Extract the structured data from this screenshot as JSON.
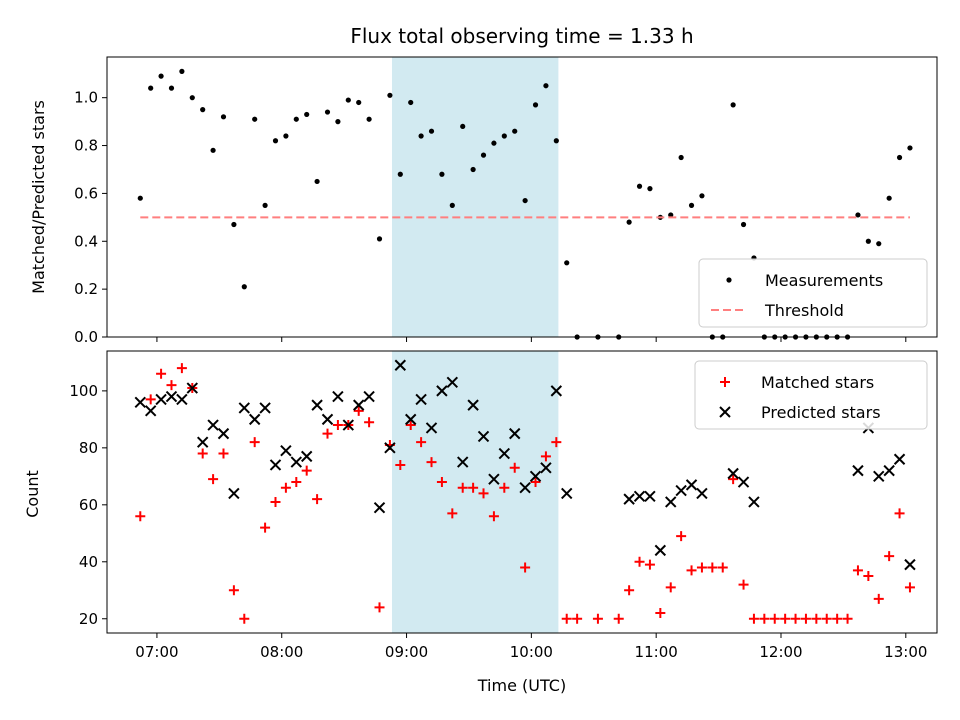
{
  "chart_data": [
    {
      "type": "scatter",
      "title": "Flux total observing time = 1.33 h",
      "xlabel": "",
      "ylabel": "Matched/Predicted stars",
      "xlim": [
        "06:36",
        "13:15"
      ],
      "ylim": [
        0,
        1.17
      ],
      "yticks": [
        0.0,
        0.2,
        0.4,
        0.6,
        0.8,
        1.0
      ],
      "ytick_labels": [
        "0.0",
        "0.2",
        "0.4",
        "0.6",
        "0.8",
        "1.0"
      ],
      "highlight_span": [
        "08:53",
        "10:13"
      ],
      "highlight_color": "#add8e6",
      "legend_position": "lower-right",
      "series": [
        {
          "name": "Measurements",
          "marker": "dot",
          "color": "#000000",
          "points": [
            [
              "06:52",
              0.58
            ],
            [
              "06:57",
              1.04
            ],
            [
              "07:02",
              1.09
            ],
            [
              "07:07",
              1.04
            ],
            [
              "07:12",
              1.11
            ],
            [
              "07:17",
              1.0
            ],
            [
              "07:22",
              0.95
            ],
            [
              "07:27",
              0.78
            ],
            [
              "07:32",
              0.92
            ],
            [
              "07:37",
              0.47
            ],
            [
              "07:42",
              0.21
            ],
            [
              "07:47",
              0.91
            ],
            [
              "07:52",
              0.55
            ],
            [
              "07:57",
              0.82
            ],
            [
              "08:02",
              0.84
            ],
            [
              "08:07",
              0.91
            ],
            [
              "08:12",
              0.93
            ],
            [
              "08:17",
              0.65
            ],
            [
              "08:22",
              0.94
            ],
            [
              "08:27",
              0.9
            ],
            [
              "08:32",
              0.99
            ],
            [
              "08:37",
              0.98
            ],
            [
              "08:42",
              0.91
            ],
            [
              "08:47",
              0.41
            ],
            [
              "08:52",
              1.01
            ],
            [
              "08:57",
              0.68
            ],
            [
              "09:02",
              0.98
            ],
            [
              "09:07",
              0.84
            ],
            [
              "09:12",
              0.86
            ],
            [
              "09:17",
              0.68
            ],
            [
              "09:22",
              0.55
            ],
            [
              "09:27",
              0.88
            ],
            [
              "09:32",
              0.7
            ],
            [
              "09:37",
              0.76
            ],
            [
              "09:42",
              0.81
            ],
            [
              "09:47",
              0.84
            ],
            [
              "09:52",
              0.86
            ],
            [
              "09:57",
              0.57
            ],
            [
              "10:02",
              0.97
            ],
            [
              "10:07",
              1.05
            ],
            [
              "10:12",
              0.82
            ],
            [
              "10:17",
              0.31
            ],
            [
              "10:22",
              0.0
            ],
            [
              "10:32",
              0.0
            ],
            [
              "10:42",
              0.0
            ],
            [
              "10:47",
              0.48
            ],
            [
              "10:52",
              0.63
            ],
            [
              "10:57",
              0.62
            ],
            [
              "11:02",
              0.5
            ],
            [
              "11:07",
              0.51
            ],
            [
              "11:12",
              0.75
            ],
            [
              "11:17",
              0.55
            ],
            [
              "11:22",
              0.59
            ],
            [
              "11:27",
              0.0
            ],
            [
              "11:32",
              0.0
            ],
            [
              "11:37",
              0.97
            ],
            [
              "11:42",
              0.47
            ],
            [
              "11:47",
              0.33
            ],
            [
              "11:52",
              0.0
            ],
            [
              "11:57",
              0.0
            ],
            [
              "12:02",
              0.0
            ],
            [
              "12:07",
              0.0
            ],
            [
              "12:12",
              0.0
            ],
            [
              "12:17",
              0.0
            ],
            [
              "12:22",
              0.0
            ],
            [
              "12:27",
              0.0
            ],
            [
              "12:32",
              0.0
            ],
            [
              "12:37",
              0.51
            ],
            [
              "12:42",
              0.4
            ],
            [
              "12:47",
              0.39
            ],
            [
              "12:52",
              0.58
            ],
            [
              "12:57",
              0.75
            ],
            [
              "13:02",
              0.79
            ]
          ]
        },
        {
          "name": "Threshold",
          "marker": "dashed-line",
          "color": "#ff7f7f",
          "points": [
            [
              "06:52",
              0.5
            ],
            [
              "13:02",
              0.5
            ]
          ]
        }
      ]
    },
    {
      "type": "scatter",
      "title": "",
      "xlabel": "Time (UTC)",
      "ylabel": "Count",
      "xlim": [
        "06:36",
        "13:15"
      ],
      "ylim": [
        15,
        114
      ],
      "yticks": [
        20,
        40,
        60,
        80,
        100
      ],
      "ytick_labels": [
        "20",
        "40",
        "60",
        "80",
        "100"
      ],
      "xticks": [
        "07:00",
        "08:00",
        "09:00",
        "10:00",
        "11:00",
        "12:00",
        "13:00"
      ],
      "xtick_labels": [
        "07:00",
        "08:00",
        "09:00",
        "10:00",
        "11:00",
        "12:00",
        "13:00"
      ],
      "highlight_span": [
        "08:53",
        "10:13"
      ],
      "highlight_color": "#add8e6",
      "legend_position": "upper-right",
      "series": [
        {
          "name": "Matched stars",
          "marker": "plus",
          "color": "#ff0000",
          "points": [
            [
              "06:52",
              56
            ],
            [
              "06:57",
              97
            ],
            [
              "07:02",
              106
            ],
            [
              "07:07",
              102
            ],
            [
              "07:12",
              108
            ],
            [
              "07:17",
              101
            ],
            [
              "07:22",
              78
            ],
            [
              "07:27",
              69
            ],
            [
              "07:32",
              78
            ],
            [
              "07:37",
              30
            ],
            [
              "07:42",
              20
            ],
            [
              "07:47",
              82
            ],
            [
              "07:52",
              52
            ],
            [
              "07:57",
              61
            ],
            [
              "08:02",
              66
            ],
            [
              "08:07",
              68
            ],
            [
              "08:12",
              72
            ],
            [
              "08:17",
              62
            ],
            [
              "08:22",
              85
            ],
            [
              "08:27",
              88
            ],
            [
              "08:32",
              88
            ],
            [
              "08:37",
              93
            ],
            [
              "08:42",
              89
            ],
            [
              "08:47",
              24
            ],
            [
              "08:52",
              81
            ],
            [
              "08:57",
              74
            ],
            [
              "09:02",
              88
            ],
            [
              "09:07",
              82
            ],
            [
              "09:12",
              75
            ],
            [
              "09:17",
              68
            ],
            [
              "09:22",
              57
            ],
            [
              "09:27",
              66
            ],
            [
              "09:32",
              66
            ],
            [
              "09:37",
              64
            ],
            [
              "09:42",
              56
            ],
            [
              "09:47",
              66
            ],
            [
              "09:52",
              73
            ],
            [
              "09:57",
              38
            ],
            [
              "10:02",
              68
            ],
            [
              "10:07",
              77
            ],
            [
              "10:12",
              82
            ],
            [
              "10:17",
              20
            ],
            [
              "10:22",
              20
            ],
            [
              "10:32",
              20
            ],
            [
              "10:42",
              20
            ],
            [
              "10:47",
              30
            ],
            [
              "10:52",
              40
            ],
            [
              "10:57",
              39
            ],
            [
              "11:02",
              22
            ],
            [
              "11:07",
              31
            ],
            [
              "11:12",
              49
            ],
            [
              "11:17",
              37
            ],
            [
              "11:22",
              38
            ],
            [
              "11:27",
              38
            ],
            [
              "11:32",
              38
            ],
            [
              "11:37",
              69
            ],
            [
              "11:42",
              32
            ],
            [
              "11:47",
              20
            ],
            [
              "11:52",
              20
            ],
            [
              "11:57",
              20
            ],
            [
              "12:02",
              20
            ],
            [
              "12:07",
              20
            ],
            [
              "12:12",
              20
            ],
            [
              "12:17",
              20
            ],
            [
              "12:22",
              20
            ],
            [
              "12:27",
              20
            ],
            [
              "12:32",
              20
            ],
            [
              "12:37",
              37
            ],
            [
              "12:42",
              35
            ],
            [
              "12:47",
              27
            ],
            [
              "12:52",
              42
            ],
            [
              "12:57",
              57
            ],
            [
              "13:02",
              31
            ]
          ]
        },
        {
          "name": "Predicted stars",
          "marker": "x",
          "color": "#000000",
          "points": [
            [
              "06:52",
              96
            ],
            [
              "06:57",
              93
            ],
            [
              "07:02",
              97
            ],
            [
              "07:07",
              98
            ],
            [
              "07:12",
              97
            ],
            [
              "07:17",
              101
            ],
            [
              "07:22",
              82
            ],
            [
              "07:27",
              88
            ],
            [
              "07:32",
              85
            ],
            [
              "07:37",
              64
            ],
            [
              "07:42",
              94
            ],
            [
              "07:47",
              90
            ],
            [
              "07:52",
              94
            ],
            [
              "07:57",
              74
            ],
            [
              "08:02",
              79
            ],
            [
              "08:07",
              75
            ],
            [
              "08:12",
              77
            ],
            [
              "08:17",
              95
            ],
            [
              "08:22",
              90
            ],
            [
              "08:27",
              98
            ],
            [
              "08:32",
              88
            ],
            [
              "08:37",
              95
            ],
            [
              "08:42",
              98
            ],
            [
              "08:47",
              59
            ],
            [
              "08:52",
              80
            ],
            [
              "08:57",
              109
            ],
            [
              "09:02",
              90
            ],
            [
              "09:07",
              97
            ],
            [
              "09:12",
              87
            ],
            [
              "09:17",
              100
            ],
            [
              "09:22",
              103
            ],
            [
              "09:27",
              75
            ],
            [
              "09:32",
              95
            ],
            [
              "09:37",
              84
            ],
            [
              "09:42",
              69
            ],
            [
              "09:47",
              78
            ],
            [
              "09:52",
              85
            ],
            [
              "09:57",
              66
            ],
            [
              "10:02",
              70
            ],
            [
              "10:07",
              73
            ],
            [
              "10:12",
              100
            ],
            [
              "10:17",
              64
            ],
            [
              "10:47",
              62
            ],
            [
              "10:52",
              63
            ],
            [
              "10:57",
              63
            ],
            [
              "11:02",
              44
            ],
            [
              "11:07",
              61
            ],
            [
              "11:12",
              65
            ],
            [
              "11:17",
              67
            ],
            [
              "11:22",
              64
            ],
            [
              "11:37",
              71
            ],
            [
              "11:42",
              68
            ],
            [
              "11:47",
              61
            ],
            [
              "12:37",
              72
            ],
            [
              "12:42",
              87
            ],
            [
              "12:47",
              70
            ],
            [
              "12:52",
              72
            ],
            [
              "12:57",
              76
            ],
            [
              "13:02",
              39
            ]
          ]
        }
      ]
    }
  ]
}
